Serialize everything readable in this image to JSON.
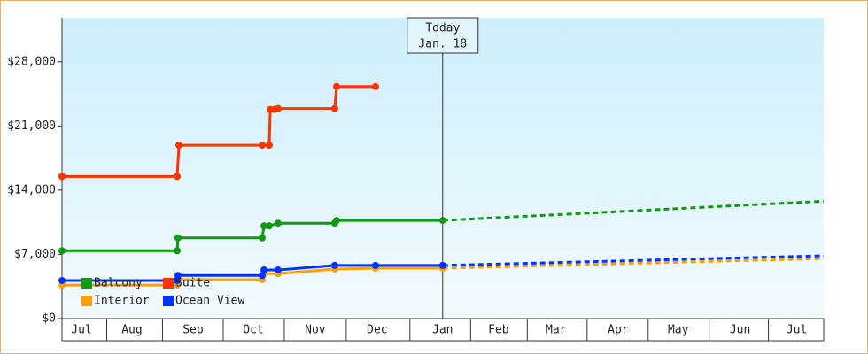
{
  "chart_data": {
    "type": "line",
    "step": true,
    "xlim": [
      0,
      379
    ],
    "ylim": [
      0,
      32800
    ],
    "xticks": [
      {
        "value": 9.7,
        "label": "Jul"
      },
      {
        "value": 34.8,
        "label": "Aug"
      },
      {
        "value": 65.2,
        "label": "Sep"
      },
      {
        "value": 95.2,
        "label": "Oct"
      },
      {
        "value": 126,
        "label": "Nov"
      },
      {
        "value": 156.8,
        "label": "Dec"
      },
      {
        "value": 189.4,
        "label": "Jan"
      },
      {
        "value": 217.2,
        "label": "Feb"
      },
      {
        "value": 245.8,
        "label": "Mar"
      },
      {
        "value": 276.7,
        "label": "Apr"
      },
      {
        "value": 306.6,
        "label": "May"
      },
      {
        "value": 337.4,
        "label": "Jun"
      },
      {
        "value": 365.6,
        "label": "Jul"
      }
    ],
    "yticks": [
      {
        "value": 0,
        "label": "$0"
      },
      {
        "value": 7000,
        "label": "$7,000"
      },
      {
        "value": 14000,
        "label": "$14,000"
      },
      {
        "value": 21000,
        "label": "$21,000"
      },
      {
        "value": 28000,
        "label": "$28,000"
      }
    ],
    "annotation": {
      "x": 189.4,
      "lines": [
        "Today",
        "Jan. 18"
      ]
    },
    "legend": "lower left",
    "series": [
      {
        "name": "Balcony",
        "color": "#119911",
        "x": [
          0,
          57.3,
          57.7,
          99.6,
          100.5,
          103.1,
          107.5,
          135.7,
          136.6,
          189.4
        ],
        "values": [
          7400,
          7400,
          8800,
          8800,
          10100,
          10100,
          10400,
          10400,
          10700,
          10700
        ],
        "forecast_x": [
          189.4,
          379
        ],
        "forecast_values": [
          10700,
          12800
        ]
      },
      {
        "name": "Suite",
        "color": "#ff3300",
        "x": [
          0,
          57.3,
          58.2,
          99.6,
          103.1,
          103.6,
          105.8,
          107.5,
          135.7,
          136.6,
          156
        ],
        "values": [
          15500,
          15500,
          18900,
          18900,
          18900,
          22800,
          22800,
          22900,
          22900,
          25300,
          25300
        ]
      },
      {
        "name": "Interior",
        "color": "#ff9f00",
        "x": [
          0,
          57.3,
          57.7,
          99.6,
          100.5,
          107.5,
          135.7,
          156,
          189.4
        ],
        "values": [
          3650,
          3650,
          4250,
          4250,
          4900,
          4900,
          5400,
          5500,
          5500
        ],
        "forecast_x": [
          189.4,
          379
        ],
        "forecast_values": [
          5500,
          6550
        ]
      },
      {
        "name": "Ocean View",
        "color": "#0033ff",
        "x": [
          0,
          57.3,
          57.7,
          99.6,
          100.5,
          107.5,
          135.7,
          156,
          189.4
        ],
        "values": [
          4150,
          4150,
          4700,
          4700,
          5300,
          5300,
          5800,
          5800,
          5800
        ],
        "forecast_x": [
          189.4,
          379
        ],
        "forecast_values": [
          5800,
          6850
        ]
      }
    ]
  }
}
